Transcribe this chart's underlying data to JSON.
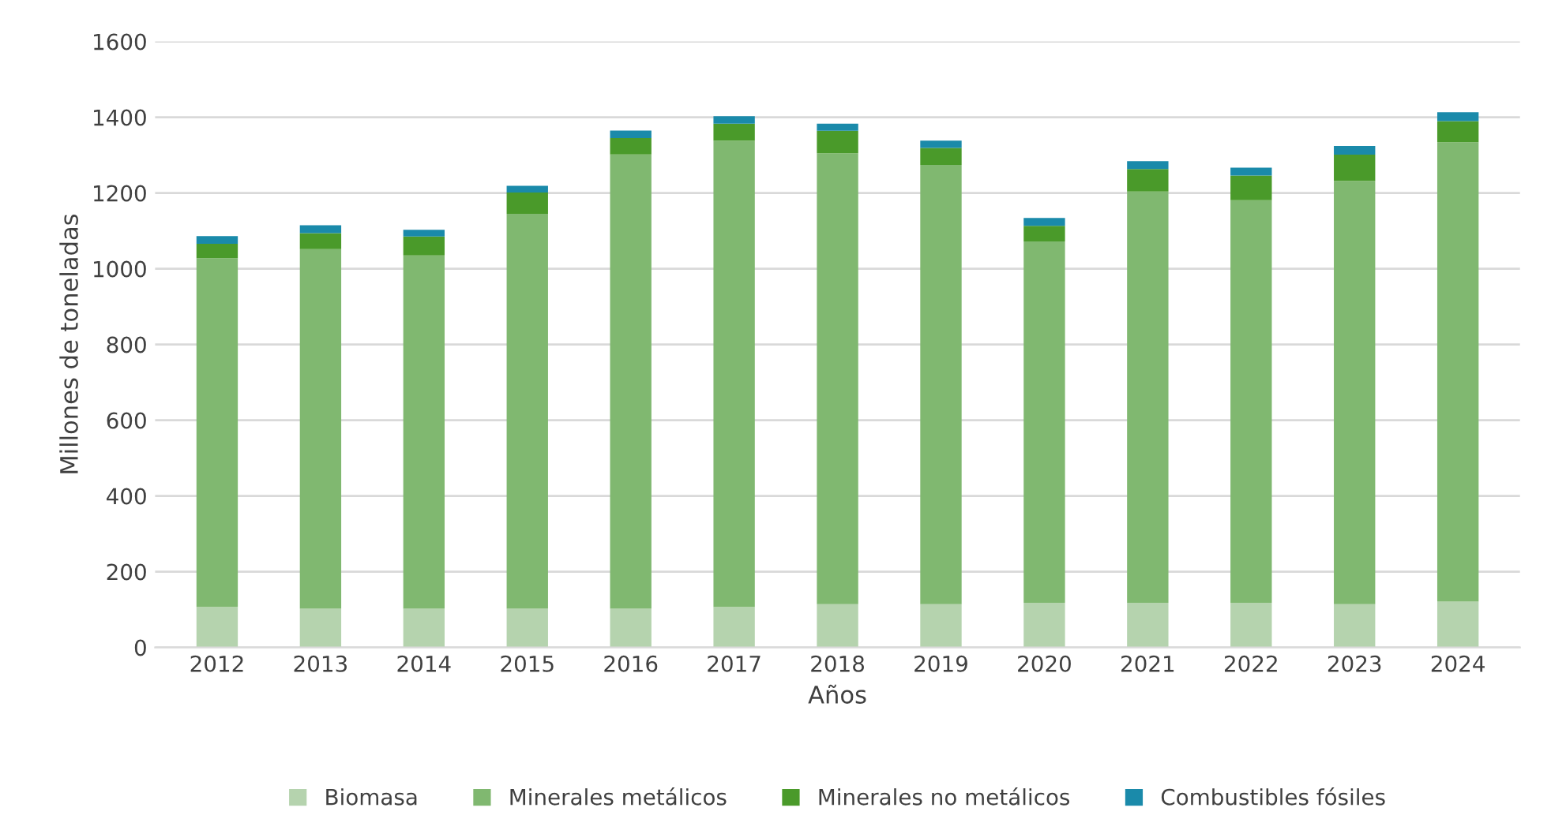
{
  "chart_data": {
    "type": "bar",
    "stacked": true,
    "xlabel": "Años",
    "ylabel": "Millones de toneladas",
    "categories": [
      "2012",
      "2013",
      "2014",
      "2015",
      "2016",
      "2017",
      "2018",
      "2019",
      "2020",
      "2021",
      "2022",
      "2023",
      "2024"
    ],
    "series": [
      {
        "name": "Biomasa",
        "color": "#b5d3ae",
        "values": [
          107,
          102,
          102,
          102,
          102,
          107,
          114,
          114,
          118,
          118,
          118,
          114,
          121
        ]
      },
      {
        "name": "Minerales metálicos",
        "color": "#80b870",
        "values": [
          921,
          950,
          933,
          1043,
          1200,
          1231,
          1191,
          1160,
          954,
          1086,
          1063,
          1118,
          1213
        ]
      },
      {
        "name": "Minerales no metálicos",
        "color": "#4a9a2a",
        "values": [
          38,
          42,
          50,
          56,
          43,
          45,
          59,
          45,
          41,
          59,
          65,
          69,
          56
        ]
      },
      {
        "name": "Combustibles fósiles",
        "color": "#1a8aaa",
        "values": [
          20,
          21,
          18,
          18,
          20,
          20,
          19,
          19,
          21,
          21,
          21,
          23,
          23
        ]
      }
    ],
    "ylim": [
      0,
      1600
    ],
    "yticks": [
      0,
      200,
      400,
      600,
      800,
      1000,
      1200,
      1400,
      1600
    ],
    "grid": "y",
    "legend": "bottom"
  }
}
